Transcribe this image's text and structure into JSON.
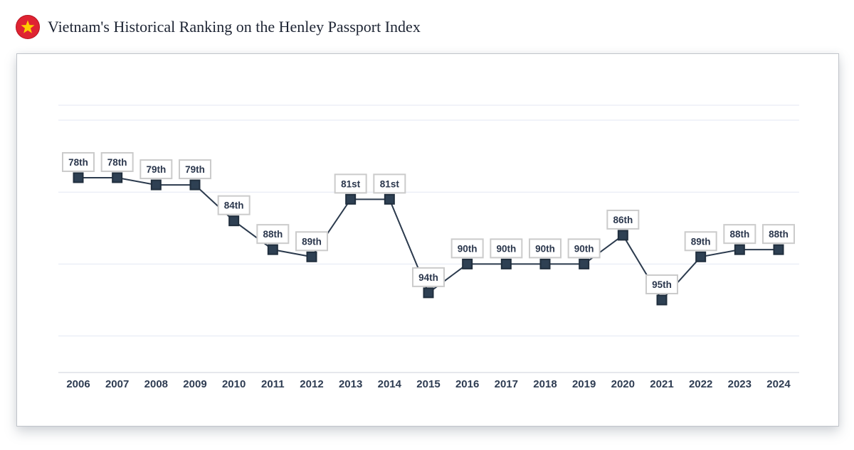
{
  "header": {
    "title": "Vietnam's Historical Ranking on the Henley Passport Index"
  },
  "colors": {
    "flag_red": "#df2332",
    "flag_red_edge": "#b5121f",
    "flag_star_yellow": "#ffcd00",
    "line": "#2b3a4d",
    "marker_fill": "#2e4053",
    "marker_stroke": "#202e3d",
    "point_label_text": "#2b374d",
    "point_label_border": "#cbcbcb",
    "point_label_bg": "#ffffff",
    "gridline": "#e3e7f3",
    "axis_line": "#ccd1da",
    "year_label": "#2e3c52",
    "title_text": "#1d2433"
  },
  "chart_data": {
    "type": "line",
    "title": "Vietnam's Historical Ranking on the Henley Passport Index",
    "x": [
      2006,
      2007,
      2008,
      2009,
      2010,
      2011,
      2012,
      2013,
      2014,
      2015,
      2016,
      2017,
      2018,
      2019,
      2020,
      2021,
      2022,
      2023,
      2024
    ],
    "series": [
      {
        "name": "Henley Passport Index rank",
        "values": [
          78,
          78,
          79,
          79,
          84,
          88,
          89,
          81,
          81,
          94,
          90,
          90,
          90,
          90,
          86,
          95,
          89,
          88,
          88
        ]
      }
    ],
    "point_labels": [
      "78th",
      "78th",
      "79th",
      "79th",
      "84th",
      "88th",
      "89th",
      "81st",
      "81st",
      "94th",
      "90th",
      "90th",
      "90th",
      "90th",
      "86th",
      "95th",
      "89th",
      "88th",
      "88th"
    ],
    "marker": "square",
    "grid": true,
    "legend": {
      "visible": false
    },
    "y_axis": {
      "inverted": true,
      "tick_labels_visible": false,
      "gridline_values": [
        70,
        80,
        90,
        100
      ]
    },
    "x_axis": {
      "labels_visible": true
    }
  }
}
